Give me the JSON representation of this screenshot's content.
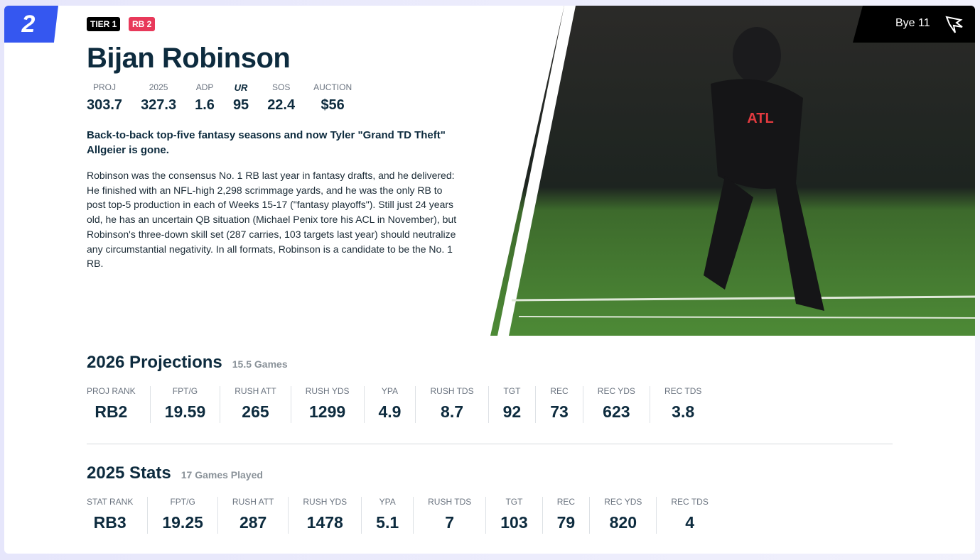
{
  "rank": "2",
  "badges": [
    "TIER 1",
    "RB 2"
  ],
  "name": "Bijan Robinson",
  "bye": "Bye 11",
  "summary_stats": [
    {
      "label": "PROJ",
      "value": 303.7
    },
    {
      "label": "2025",
      "value": 327.3
    },
    {
      "label": "ADP",
      "value": 1.6
    },
    {
      "label": "UR",
      "value": 95
    },
    {
      "label": "SOS",
      "value": 22.4
    },
    {
      "label": "AUCTION",
      "value": "$56"
    }
  ],
  "headline": "Back-to-back top-five fantasy seasons and now Tyler \"Grand TD Theft\" Allgeier is gone.",
  "body": "Robinson was the consensus No. 1 RB last year in fantasy drafts, and he delivered: He finished with an NFL-high 2,298 scrimmage yards, and he was the only RB to post top-5 production in each of Weeks 15-17 (\"fantasy playoffs\"). Still just 24 years old, he has an uncertain QB situation (Michael Penix tore his ACL in November), but Robinson's three-down skill set (287 carries, 103 targets last year) should neutralize any circumstantial negativity. In all formats, Robinson is a candidate to be the No. 1 RB.",
  "projections": {
    "title": "2026 Projections",
    "subtitle": "15.5 Games",
    "columns": [
      {
        "label": "PROJ RANK",
        "value": "RB2"
      },
      {
        "label": "FPT/G",
        "value": 19.59
      },
      {
        "label": "RUSH ATT",
        "value": 265
      },
      {
        "label": "RUSH YDS",
        "value": 1299
      },
      {
        "label": "YPA",
        "value": 4.9
      },
      {
        "label": "RUSH TDS",
        "value": 8.7
      },
      {
        "label": "TGT",
        "value": 92
      },
      {
        "label": "REC",
        "value": 73
      },
      {
        "label": "REC YDS",
        "value": 623
      },
      {
        "label": "REC TDS",
        "value": 3.8
      }
    ]
  },
  "stats": {
    "title": "2025 Stats",
    "subtitle": "17 Games Played",
    "columns": [
      {
        "label": "STAT RANK",
        "value": "RB3"
      },
      {
        "label": "FPT/G",
        "value": 19.25
      },
      {
        "label": "RUSH ATT",
        "value": 287
      },
      {
        "label": "RUSH YDS",
        "value": 1478
      },
      {
        "label": "YPA",
        "value": 5.1
      },
      {
        "label": "RUSH TDS",
        "value": 7
      },
      {
        "label": "TGT",
        "value": 103
      },
      {
        "label": "REC",
        "value": 79
      },
      {
        "label": "REC YDS",
        "value": 820
      },
      {
        "label": "REC TDS",
        "value": 4
      }
    ]
  }
}
